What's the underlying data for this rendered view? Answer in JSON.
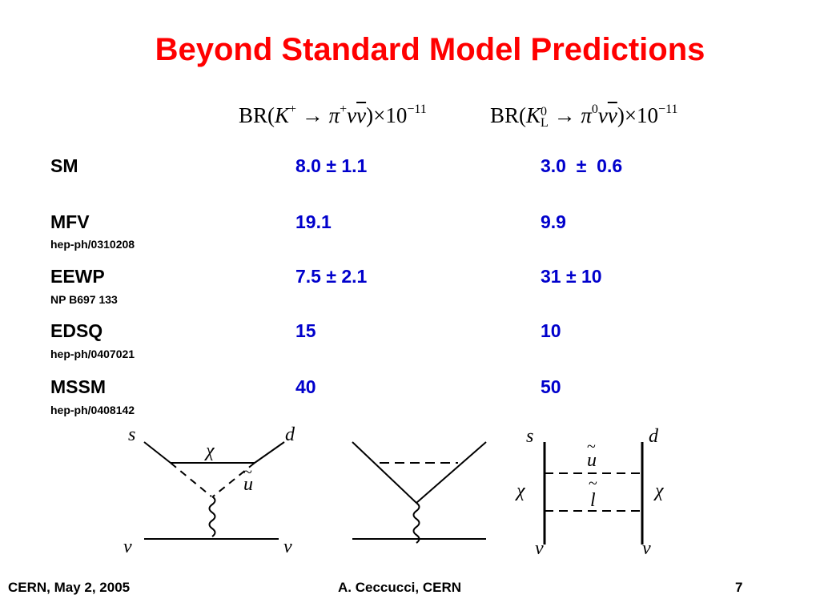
{
  "title": "Beyond Standard Model Predictions",
  "headers": {
    "col1": {
      "prefix": "BR(",
      "k": "K",
      "k_sup": "+",
      "arrow": "→",
      "pi": "π",
      "pi_sup": "+",
      "nu": "ν",
      "nubar": "ν",
      "close": ")",
      "times": "×10",
      "exp": "−11"
    },
    "col2": {
      "prefix": "BR(",
      "k": "K",
      "k_sup": "0",
      "k_sub": "L",
      "arrow": "→",
      "pi": "π",
      "pi_sup": "0",
      "nu": "ν",
      "nubar": "ν",
      "close": ")",
      "times": "×10",
      "exp": "−11"
    }
  },
  "rows": [
    {
      "name": "SM",
      "ref": "",
      "v1": "8.0 ± 1.1",
      "v2": "3.0  ±  0.6"
    },
    {
      "name": "MFV",
      "ref": "hep-ph/0310208",
      "v1": "19.1",
      "v2": "9.9"
    },
    {
      "name": "EEWP",
      "ref": "NP B697 133",
      "v1": "7.5 ± 2.1",
      "v2": "31 ± 10"
    },
    {
      "name": "EDSQ",
      "ref": "hep-ph/0407021",
      "v1": "15",
      "v2": "10"
    },
    {
      "name": "MSSM",
      "ref": "hep-ph/0408142",
      "v1": "40",
      "v2": "50"
    }
  ],
  "diagrams": {
    "d1": {
      "s": "s",
      "d": "d",
      "chi": "χ",
      "u": "u",
      "tilde": "~",
      "nu_l": "ν",
      "nu_r": "ν"
    },
    "d3": {
      "s": "s",
      "d": "d",
      "u": "u",
      "l": "l",
      "tilde": "~",
      "chi_l": "χ",
      "chi_r": "χ",
      "nu_l": "ν",
      "nu_r": "ν"
    }
  },
  "footer": {
    "left": "CERN, May 2, 2005",
    "center": "A. Ceccucci, CERN",
    "page": "7"
  }
}
